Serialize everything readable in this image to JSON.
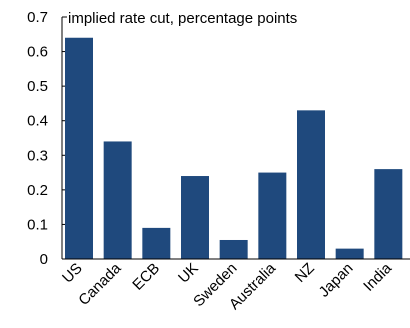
{
  "chart_data": {
    "type": "bar",
    "title": "implied rate cut, percentage points",
    "categories": [
      "US",
      "Canada",
      "ECB",
      "UK",
      "Sweden",
      "Australia",
      "NZ",
      "Japan",
      "India"
    ],
    "values": [
      0.64,
      0.34,
      0.09,
      0.24,
      0.055,
      0.25,
      0.43,
      0.03,
      0.26
    ],
    "ylim": [
      0,
      0.7
    ],
    "yticks": [
      "0",
      "0.1",
      "0.2",
      "0.3",
      "0.4",
      "0.5",
      "0.6",
      "0.7"
    ],
    "xlabel": "",
    "ylabel": "",
    "grid": false,
    "bar_color": "#1f497d"
  }
}
